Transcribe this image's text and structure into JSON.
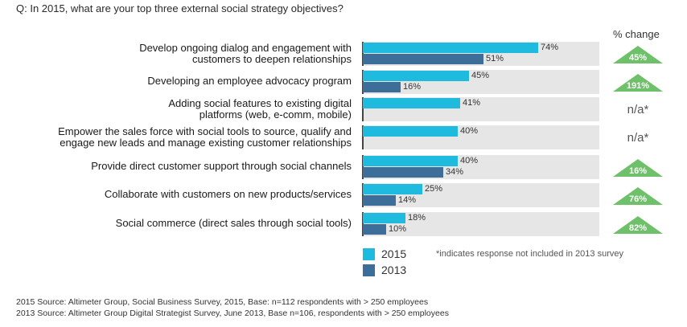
{
  "question": "Q: In 2015, what are your top three external social strategy objectives?",
  "change_header": "% change",
  "chart_data": {
    "type": "bar",
    "orientation": "horizontal",
    "xlim": [
      0,
      100
    ],
    "categories": [
      [
        "Develop ongoing dialog and engagement with",
        "customers to deepen relationships"
      ],
      [
        "Developing an employee advocacy program"
      ],
      [
        "Adding social features to existing digital",
        "platforms (web, e-comm, mobile)"
      ],
      [
        "Empower the sales force with social tools to source, qualify and",
        "engage new leads and manage existing customer relationships"
      ],
      [
        "Provide direct customer support through social channels"
      ],
      [
        "Collaborate with customers on new products/services"
      ],
      [
        "Social commerce (direct sales through social tools)"
      ]
    ],
    "series": [
      {
        "name": "2015",
        "color": "#1ebbdf",
        "values": [
          74,
          45,
          41,
          40,
          40,
          25,
          18
        ],
        "labels": [
          "74%",
          "45%",
          "41%",
          "40%",
          "40%",
          "25%",
          "18%"
        ]
      },
      {
        "name": "2013",
        "color": "#3d6e99",
        "values": [
          51,
          16,
          null,
          null,
          34,
          14,
          10
        ],
        "labels": [
          "51%",
          "16%",
          null,
          null,
          "34%",
          "14%",
          "10%"
        ]
      }
    ],
    "percent_change": [
      "45%",
      "191%",
      "n/a*",
      "n/a*",
      "16%",
      "76%",
      "82%"
    ],
    "change_color": "#6fc06a",
    "legend_placement": "bottom"
  },
  "footnote": "*indicates response not included in 2013 survey",
  "sources": [
    "2015 Source: Altimeter Group, Social Business Survey, 2015, Base: n=112 respondents with > 250 employees",
    "2013 Source: Altimeter Group Digital Strategist Survey, June 2013, Base n=106, respondents with > 250 employees"
  ]
}
